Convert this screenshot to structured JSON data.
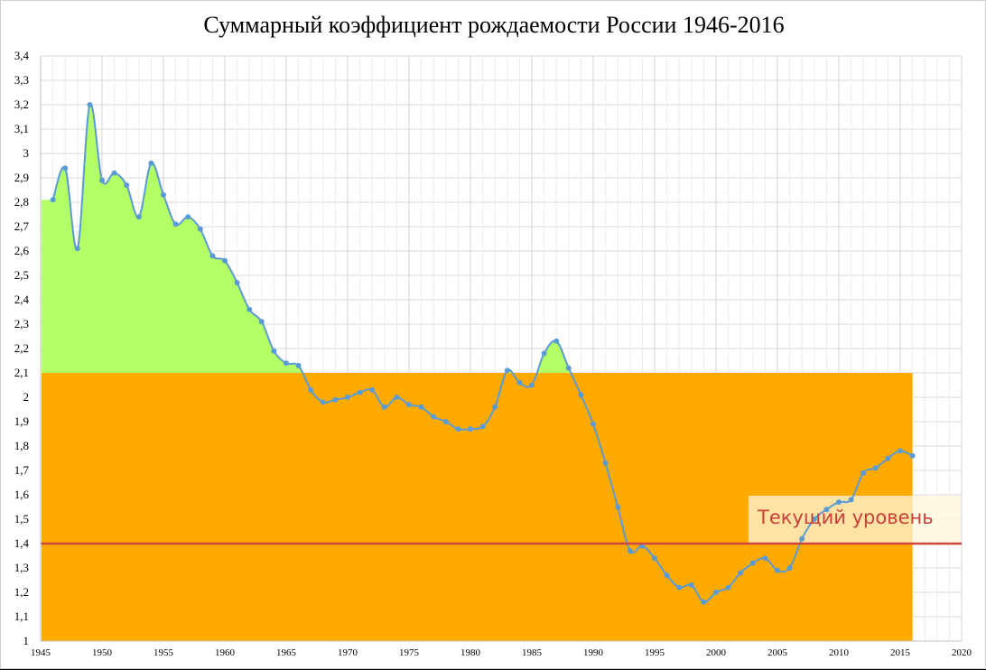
{
  "title": "Суммарный коэффициент рождаемости России 1946-2016",
  "reference_label": "Текущий уровень",
  "colors": {
    "below_replacement": "#ffaa00",
    "above_replacement": "#b3ff66",
    "line": "#5b9bd5",
    "reference_line": "#d0473d",
    "label_box": "#fff6dc",
    "grid": "#d9d9d9"
  },
  "chart_data": {
    "type": "area",
    "xlim": [
      1945,
      2020
    ],
    "ylim": [
      1,
      3.4
    ],
    "x_ticks": [
      "1945",
      "1950",
      "1955",
      "1960",
      "1965",
      "1970",
      "1975",
      "1980",
      "1985",
      "1990",
      "1995",
      "2000",
      "2005",
      "2010",
      "2015",
      "2020"
    ],
    "y_ticks": [
      "1",
      "1,1",
      "1,2",
      "1,3",
      "1,4",
      "1,5",
      "1,6",
      "1,7",
      "1,8",
      "1,9",
      "2",
      "2,1",
      "2,2",
      "2,3",
      "2,4",
      "2,5",
      "2,6",
      "2,7",
      "2,8",
      "2,9",
      "3",
      "3,1",
      "3,2",
      "3,3",
      "3,4"
    ],
    "replacement_level": 2.1,
    "current_level": 1.4,
    "grid": true,
    "legend": "none",
    "series": [
      {
        "x": [
          1946,
          1947,
          1948,
          1949,
          1950,
          1951,
          1952,
          1953,
          1954,
          1955,
          1956,
          1957,
          1958,
          1959,
          1960,
          1961,
          1962,
          1963,
          1964,
          1965,
          1966,
          1967,
          1968,
          1969,
          1970,
          1971,
          1972,
          1973,
          1974,
          1975,
          1976,
          1977,
          1978,
          1979,
          1980,
          1981,
          1982,
          1983,
          1984,
          1985,
          1986,
          1987,
          1988,
          1989,
          1990,
          1991,
          1992,
          1993,
          1994,
          1995,
          1996,
          1997,
          1998,
          1999,
          2000,
          2001,
          2002,
          2003,
          2004,
          2005,
          2006,
          2007,
          2008,
          2009,
          2010,
          2011,
          2012,
          2013,
          2014,
          2015,
          2016
        ],
        "values": [
          2.81,
          2.94,
          2.61,
          3.2,
          2.89,
          2.92,
          2.87,
          2.74,
          2.96,
          2.83,
          2.71,
          2.74,
          2.69,
          2.58,
          2.56,
          2.47,
          2.36,
          2.31,
          2.19,
          2.14,
          2.13,
          2.03,
          1.98,
          1.99,
          2.0,
          2.02,
          2.03,
          1.96,
          2.0,
          1.97,
          1.96,
          1.92,
          1.9,
          1.87,
          1.87,
          1.88,
          1.96,
          2.11,
          2.06,
          2.05,
          2.18,
          2.23,
          2.12,
          2.01,
          1.89,
          1.73,
          1.55,
          1.37,
          1.39,
          1.34,
          1.27,
          1.22,
          1.23,
          1.16,
          1.2,
          1.22,
          1.28,
          1.32,
          1.34,
          1.29,
          1.3,
          1.42,
          1.5,
          1.54,
          1.57,
          1.58,
          1.69,
          1.71,
          1.75,
          1.78,
          1.76
        ]
      }
    ]
  }
}
